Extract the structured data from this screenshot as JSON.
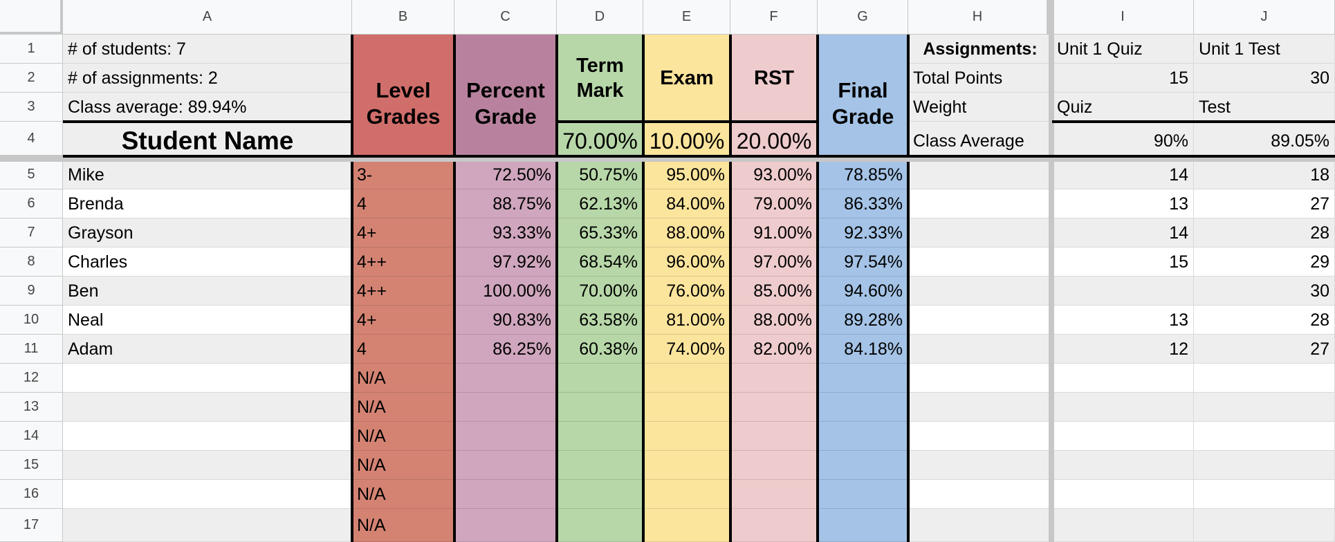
{
  "columns": [
    "A",
    "B",
    "C",
    "D",
    "E",
    "F",
    "G",
    "H",
    "I",
    "J"
  ],
  "row_numbers": [
    "1",
    "2",
    "3",
    "4",
    "5",
    "6",
    "7",
    "8",
    "9",
    "10",
    "11",
    "12",
    "13",
    "14",
    "15",
    "16",
    "17"
  ],
  "summary": {
    "students": "# of students: 7",
    "assignments": "# of assignments: 2",
    "class_average": "Class average: 89.94%"
  },
  "headers": {
    "student_name": "Student Name",
    "level_grades": "Level Grades",
    "percent_grade": "Percent Grade",
    "term_mark": "Term Mark",
    "exam": "Exam",
    "rst": "RST",
    "final_grade": "Final Grade",
    "term_weight": "70.00%",
    "exam_weight": "10.00%",
    "rst_weight": "20.00%"
  },
  "assignments_panel": {
    "title": "Assignments:",
    "total_points_label": "Total Points",
    "weight_label": "Weight",
    "class_average_label": "Class Average",
    "names": [
      "Unit 1 Quiz",
      "Unit 1 Test"
    ],
    "total_points": [
      "15",
      "30"
    ],
    "weights": [
      "Quiz",
      "Test"
    ],
    "class_averages": [
      "90%",
      "89.05%"
    ]
  },
  "students": [
    {
      "name": "Mike",
      "level": "3-",
      "percent": "72.50%",
      "term": "50.75%",
      "exam": "95.00%",
      "rst": "93.00%",
      "final": "78.85%",
      "quiz": "14",
      "test": "18"
    },
    {
      "name": "Brenda",
      "level": "4",
      "percent": "88.75%",
      "term": "62.13%",
      "exam": "84.00%",
      "rst": "79.00%",
      "final": "86.33%",
      "quiz": "13",
      "test": "27"
    },
    {
      "name": "Grayson",
      "level": "4+",
      "percent": "93.33%",
      "term": "65.33%",
      "exam": "88.00%",
      "rst": "91.00%",
      "final": "92.33%",
      "quiz": "14",
      "test": "28"
    },
    {
      "name": "Charles",
      "level": "4++",
      "percent": "97.92%",
      "term": "68.54%",
      "exam": "96.00%",
      "rst": "97.00%",
      "final": "97.54%",
      "quiz": "15",
      "test": "29"
    },
    {
      "name": "Ben",
      "level": "4++",
      "percent": "100.00%",
      "term": "70.00%",
      "exam": "76.00%",
      "rst": "85.00%",
      "final": "94.60%",
      "quiz": "",
      "test": "30"
    },
    {
      "name": "Neal",
      "level": "4+",
      "percent": "90.83%",
      "term": "63.58%",
      "exam": "81.00%",
      "rst": "88.00%",
      "final": "89.28%",
      "quiz": "13",
      "test": "28"
    },
    {
      "name": "Adam",
      "level": "4",
      "percent": "86.25%",
      "term": "60.38%",
      "exam": "74.00%",
      "rst": "82.00%",
      "final": "84.18%",
      "quiz": "12",
      "test": "27"
    }
  ],
  "empty_level_value": "N/A",
  "colors": {
    "level": "#d06e6b",
    "level_body": "#d48373",
    "percent": "#b8829e",
    "percent_body": "#cfa6be",
    "term": "#b7d7a8",
    "exam": "#fbe49c",
    "rst": "#eecbcc",
    "final": "#a4c3e6",
    "stripe": "#eeeeee"
  }
}
